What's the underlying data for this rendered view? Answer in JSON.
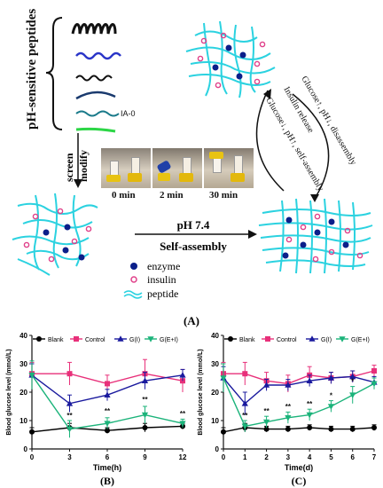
{
  "schematic": {
    "title": "pH-sensitive peptides",
    "peptide_tag": "IA-0",
    "screen_label": "screen",
    "modify_label": "modify",
    "times": [
      "0 min",
      "2 min",
      "30 min"
    ],
    "arrow_top": "pH 7.4",
    "arrow_bottom": "Self-assembly",
    "cycle_outer": "Glucose↑, pH↓, disassembly",
    "cycle_middle": "Insulin release",
    "cycle_inner": "Glucose↓, pH↑, self-assembly",
    "legend": [
      {
        "key": "enzyme",
        "label": "enzyme"
      },
      {
        "key": "insulin",
        "label": "insulin"
      },
      {
        "key": "peptide",
        "label": "peptide"
      }
    ],
    "panel_label": "(A)",
    "colors": {
      "peptide": "#2bd2e0",
      "enzyme": "#0b1f8a",
      "insulin": "#e0408a"
    }
  },
  "chart_data": [
    {
      "type": "line",
      "panel_label": "(B)",
      "xlabel": "Time(h)",
      "ylabel": "Blood glucose level (mmol/L)",
      "xlim": [
        0,
        12
      ],
      "ylim": [
        0,
        40
      ],
      "xticks": [
        0,
        3,
        6,
        9,
        12
      ],
      "yticks": [
        0,
        10,
        20,
        30,
        40
      ],
      "x": [
        0,
        3,
        6,
        9,
        12
      ],
      "series": [
        {
          "name": "Blank",
          "color": "#000000",
          "marker": "circle",
          "values": [
            6,
            7.5,
            6.5,
            7.5,
            8
          ],
          "err": [
            1.5,
            1.5,
            1,
            1.5,
            1
          ]
        },
        {
          "name": "Control",
          "color": "#e8307a",
          "marker": "square",
          "values": [
            26.5,
            26.5,
            23,
            26.5,
            24
          ],
          "err": [
            4,
            4,
            3,
            5,
            4
          ]
        },
        {
          "name": "G(I)",
          "color": "#1a1a9e",
          "marker": "triangle",
          "values": [
            26,
            16,
            19,
            24,
            26
          ],
          "err": [
            4,
            3,
            2,
            3,
            2
          ]
        },
        {
          "name": "G(E+I)",
          "color": "#1bb37a",
          "marker": "tridown",
          "values": [
            26,
            7,
            9,
            12,
            9
          ],
          "err": [
            5,
            3,
            2,
            3,
            1.5
          ]
        }
      ],
      "annotations": [
        {
          "x": 3,
          "y": 11,
          "text": "**"
        },
        {
          "x": 6,
          "y": 12.5,
          "text": "**"
        },
        {
          "x": 9,
          "y": 16.5,
          "text": "**"
        },
        {
          "x": 12,
          "y": 11.5,
          "text": "**"
        }
      ]
    },
    {
      "type": "line",
      "panel_label": "(C)",
      "xlabel": "Time(d)",
      "ylabel": "Blood glucose level (mmol/L)",
      "xlim": [
        0,
        7
      ],
      "ylim": [
        0,
        40
      ],
      "xticks": [
        0,
        1,
        2,
        3,
        4,
        5,
        6,
        7
      ],
      "yticks": [
        0,
        10,
        20,
        30,
        40
      ],
      "x": [
        0,
        1,
        2,
        3,
        4,
        5,
        6,
        7
      ],
      "series": [
        {
          "name": "Blank",
          "color": "#000000",
          "marker": "circle",
          "values": [
            6,
            7.5,
            7,
            7,
            7.5,
            7,
            7,
            7.5
          ],
          "err": [
            1.5,
            1.5,
            1,
            1,
            1,
            1,
            1,
            1
          ]
        },
        {
          "name": "Control",
          "color": "#e8307a",
          "marker": "square",
          "values": [
            26.5,
            26.5,
            24,
            23,
            26,
            25,
            25.5,
            27.5
          ],
          "err": [
            4,
            4,
            3,
            3,
            3,
            2,
            2,
            2
          ]
        },
        {
          "name": "G(I)",
          "color": "#1a1a9e",
          "marker": "triangle",
          "values": [
            25,
            16,
            22.5,
            22.5,
            24,
            25,
            25.5,
            23.5
          ],
          "err": [
            4,
            4,
            2,
            2,
            2,
            2,
            2,
            2
          ]
        },
        {
          "name": "G(E+I)",
          "color": "#1bb37a",
          "marker": "tridown",
          "values": [
            25,
            8,
            9.5,
            11,
            12,
            15,
            19,
            23
          ],
          "err": [
            5,
            2,
            2,
            2,
            2,
            2,
            3,
            2
          ]
        }
      ],
      "annotations": [
        {
          "x": 1,
          "y": 11,
          "text": "**"
        },
        {
          "x": 2,
          "y": 12.5,
          "text": "**"
        },
        {
          "x": 3,
          "y": 14,
          "text": "**"
        },
        {
          "x": 4,
          "y": 15,
          "text": "**"
        },
        {
          "x": 5,
          "y": 18,
          "text": "*"
        },
        {
          "x": 6,
          "y": 23,
          "text": "*"
        }
      ]
    }
  ]
}
